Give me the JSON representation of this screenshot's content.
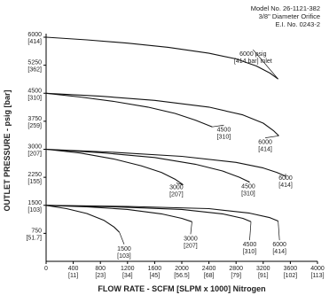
{
  "header": {
    "model": "Model No. 26-1121-382",
    "orifice": "3/8\" Diameter Orifice",
    "ei": "E.I. No. 0243-2"
  },
  "chart_data": {
    "type": "line",
    "title": "",
    "xlabel": "FLOW RATE - SCFM [SLPM x 1000] Nitrogen",
    "ylabel": "OUTLET PRESSURE - psig [bar]",
    "xlim": [
      0,
      4000
    ],
    "ylim": [
      0,
      6000
    ],
    "grid": false,
    "x_ticks": [
      {
        "value": 0,
        "label": "0",
        "sub": ""
      },
      {
        "value": 400,
        "label": "400",
        "sub": "[11]"
      },
      {
        "value": 800,
        "label": "800",
        "sub": "[23]"
      },
      {
        "value": 1200,
        "label": "1200",
        "sub": "[34]"
      },
      {
        "value": 1600,
        "label": "1600",
        "sub": "[45]"
      },
      {
        "value": 2000,
        "label": "2000",
        "sub": "[56.5]"
      },
      {
        "value": 2400,
        "label": "2400",
        "sub": "[68]"
      },
      {
        "value": 2800,
        "label": "2800",
        "sub": "[79]"
      },
      {
        "value": 3200,
        "label": "3200",
        "sub": "[91]"
      },
      {
        "value": 3600,
        "label": "3600",
        "sub": "[102]"
      },
      {
        "value": 4000,
        "label": "4000",
        "sub": "[113]"
      }
    ],
    "y_ticks": [
      {
        "value": 6000,
        "label": "6000",
        "sub": "[414]"
      },
      {
        "value": 5250,
        "label": "5250",
        "sub": "[362]"
      },
      {
        "value": 4500,
        "label": "4500",
        "sub": "[310]"
      },
      {
        "value": 3750,
        "label": "3750",
        "sub": "[259]"
      },
      {
        "value": 3000,
        "label": "3000",
        "sub": "[207]"
      },
      {
        "value": 2250,
        "label": "2250",
        "sub": "[155]"
      },
      {
        "value": 1500,
        "label": "1500",
        "sub": "[103]"
      },
      {
        "value": 750,
        "label": "750",
        "sub": "[51.7]"
      }
    ],
    "series": [
      {
        "label": [
          "6000 psig",
          "[414 bar] Inlet"
        ],
        "lx": 3050,
        "ly": 5500,
        "x": [
          0,
          600,
          1200,
          1800,
          2400,
          2800,
          3100,
          3300,
          3420
        ],
        "y": [
          6000,
          5930,
          5840,
          5730,
          5570,
          5420,
          5230,
          5040,
          4880
        ]
      },
      {
        "label": [
          "4500",
          "[310]"
        ],
        "lx": 2620,
        "ly": 3480,
        "x": [
          0,
          500,
          1000,
          1500,
          1900,
          2200,
          2450
        ],
        "y": [
          4500,
          4400,
          4280,
          4130,
          3960,
          3780,
          3600
        ]
      },
      {
        "label": [
          "6000",
          "[414]"
        ],
        "lx": 3230,
        "ly": 3140,
        "x": [
          0,
          800,
          1600,
          2400,
          2900,
          3200,
          3350,
          3430
        ],
        "y": [
          4500,
          4420,
          4310,
          4130,
          3920,
          3700,
          3500,
          3360
        ]
      },
      {
        "label": [
          "3000",
          "[207]"
        ],
        "lx": 1920,
        "ly": 1930,
        "x": [
          0,
          500,
          1000,
          1400,
          1700,
          1900,
          2020
        ],
        "y": [
          3000,
          2900,
          2740,
          2560,
          2380,
          2200,
          2050
        ]
      },
      {
        "label": [
          "4500",
          "[310]"
        ],
        "lx": 2980,
        "ly": 1960,
        "x": [
          0,
          800,
          1600,
          2200,
          2600,
          2850,
          3000
        ],
        "y": [
          3000,
          2910,
          2780,
          2600,
          2420,
          2250,
          2120
        ]
      },
      {
        "label": [
          "6000",
          "[414]"
        ],
        "lx": 3530,
        "ly": 2180,
        "x": [
          0,
          1000,
          2000,
          2800,
          3200,
          3400,
          3530
        ],
        "y": [
          3000,
          2920,
          2810,
          2650,
          2500,
          2380,
          2280
        ]
      },
      {
        "label": [
          "1500",
          "[103]"
        ],
        "lx": 1150,
        "ly": 290,
        "x": [
          0,
          300,
          600,
          850,
          1000,
          1080
        ],
        "y": [
          1500,
          1410,
          1280,
          1100,
          920,
          780
        ]
      },
      {
        "label": [
          "3000",
          "[207]"
        ],
        "lx": 2130,
        "ly": 560,
        "x": [
          0,
          600,
          1200,
          1700,
          2000,
          2150
        ],
        "y": [
          1500,
          1460,
          1390,
          1270,
          1150,
          1060
        ]
      },
      {
        "label": [
          "4500",
          "[310]"
        ],
        "lx": 3000,
        "ly": 400,
        "x": [
          0,
          1000,
          2000,
          2600,
          2900,
          3020
        ],
        "y": [
          1500,
          1460,
          1390,
          1270,
          1150,
          1060
        ]
      },
      {
        "label": [
          "6000",
          "[414]"
        ],
        "lx": 3440,
        "ly": 400,
        "x": [
          0,
          1200,
          2400,
          3000,
          3300,
          3420
        ],
        "y": [
          1500,
          1470,
          1410,
          1290,
          1170,
          1080
        ]
      }
    ]
  }
}
